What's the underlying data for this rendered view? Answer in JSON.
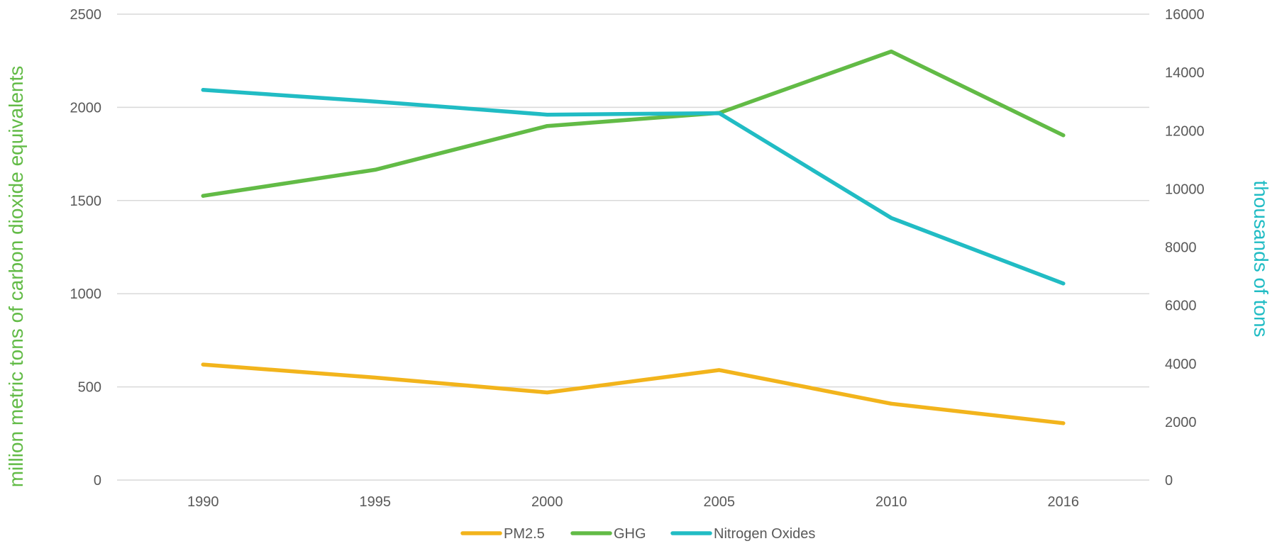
{
  "chart_data": {
    "type": "line",
    "categories": [
      "1990",
      "1995",
      "2000",
      "2005",
      "2010",
      "2016"
    ],
    "y_left": {
      "label": "million metric tons of carbon dioxide equivalents",
      "range": [
        0,
        2500
      ],
      "ticks": [
        "0",
        "500",
        "1000",
        "1500",
        "2000",
        "2500"
      ]
    },
    "y_right": {
      "label": "thousands of tons",
      "range": [
        0,
        16000
      ],
      "ticks": [
        "0",
        "2000",
        "4000",
        "6000",
        "8000",
        "10000",
        "12000",
        "14000",
        "16000"
      ]
    },
    "series": [
      {
        "name": "PM2.5",
        "axis": "left",
        "color": "#f2b41c",
        "values": [
          620,
          550,
          470,
          590,
          410,
          305
        ]
      },
      {
        "name": "GHG",
        "axis": "left",
        "color": "#62bb46",
        "values": [
          1525,
          1665,
          1900,
          1970,
          2300,
          1850
        ]
      },
      {
        "name": "Nitrogen Oxides",
        "axis": "right",
        "color": "#21bcc4",
        "values": [
          13400,
          13000,
          12550,
          12600,
          9000,
          6750
        ]
      }
    ],
    "grid": true,
    "legend_position": "bottom",
    "colors": {
      "left_axis_title": "#62bb46",
      "right_axis_title": "#21bcc4",
      "grid": "#d9d9d9",
      "tick_text": "#595959"
    }
  }
}
